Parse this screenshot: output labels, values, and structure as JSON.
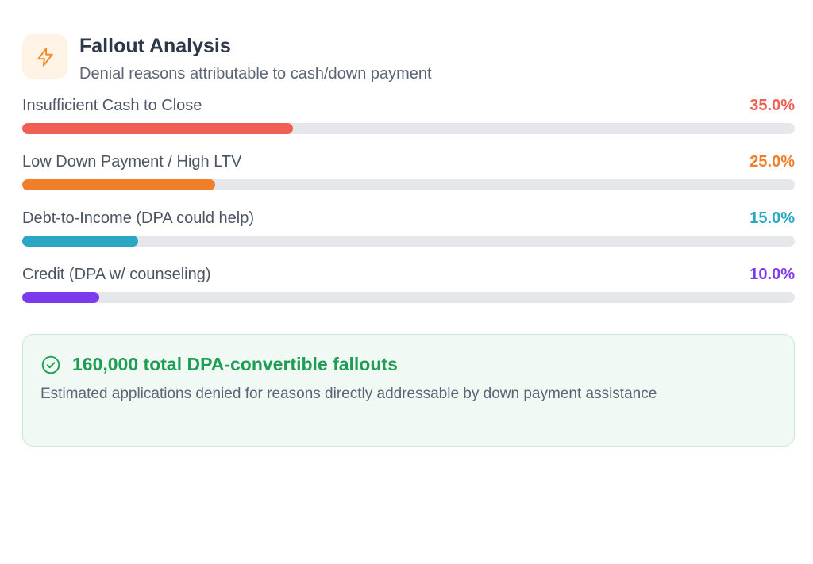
{
  "header": {
    "icon": "lightning-bolt-icon",
    "title": "Fallout Analysis",
    "subtitle": "Denial reasons attributable to cash/down payment"
  },
  "reasons": [
    {
      "label": "Insufficient Cash to Close",
      "value_text": "35.0%",
      "value": 35.0,
      "color": "#ef5f52"
    },
    {
      "label": "Low Down Payment / High LTV",
      "value_text": "25.0%",
      "value": 25.0,
      "color": "#f07e2b"
    },
    {
      "label": "Debt-to-Income (DPA could help)",
      "value_text": "15.0%",
      "value": 15.0,
      "color": "#2aa7c2"
    },
    {
      "label": "Credit (DPA w/ counseling)",
      "value_text": "10.0%",
      "value": 10.0,
      "color": "#7c3aed"
    }
  ],
  "callout": {
    "icon": "check-circle-icon",
    "title": "160,000 total DPA-convertible fallouts",
    "text": "Estimated applications denied for reasons directly addressable by down payment assistance",
    "accent": "#1f9d55"
  }
}
